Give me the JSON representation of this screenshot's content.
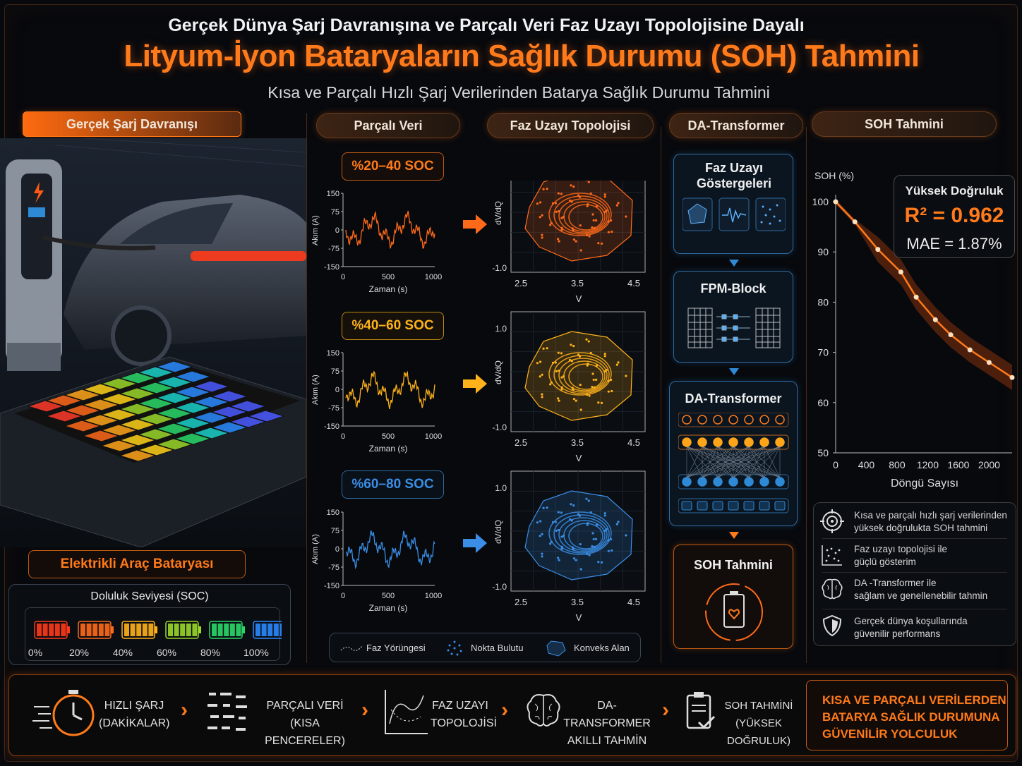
{
  "title": {
    "line1": "Gerçek Dünya Şarj Davranışına ve Parçalı Veri Faz Uzayı Topolojisine Dayalı",
    "line2": "Lityum-İyon Bataryaların Sağlık Durumu (SOH) Tahmini",
    "line3": "Kısa ve Parçalı Hızlı Şarj Verilerinden Batarya Sağlık Durumu Tahmini"
  },
  "headers": {
    "charge": "Gerçek Şarj Davranışı",
    "fragmented": "Parçalı Veri",
    "phase": "Faz Uzayı Topolojisi",
    "transformer": "DA-Transformer",
    "soh": "SOH Tahmini"
  },
  "left": {
    "ev_label": "Elektrikli Araç Bataryası",
    "soc_title": "Doluluk Seviyesi (SOC)",
    "soc_levels": [
      "0%",
      "20%",
      "40%",
      "60%",
      "80%",
      "100%"
    ],
    "colors": {
      "accent": "#ff7a1a",
      "yellow": "#ffb21a",
      "blue": "#2f8ad6"
    }
  },
  "segments": [
    {
      "label": "%20–40 SOC",
      "color": "#ff6a1a"
    },
    {
      "label": "%40–60 SOC",
      "color": "#ffb21a"
    },
    {
      "label": "%60–80 SOC",
      "color": "#3a8ee6"
    }
  ],
  "current_plot": {
    "ylabel": "Akım (A)",
    "xlabel": "Zaman (s)",
    "yticks": [
      "150",
      "75",
      "0",
      "-75",
      "-150"
    ],
    "xticks": [
      "0",
      "500",
      "1000"
    ]
  },
  "phase_plot": {
    "ylabel": "dV/dQ",
    "xlabel": "V",
    "yticks": [
      "1.0",
      "-1.0"
    ],
    "xticks": [
      "2.5",
      "3.5",
      "4.5"
    ]
  },
  "legend": {
    "trajectory": "Faz Yörüngesi",
    "cloud": "Nokta Bulutu",
    "hull": "Konveks Alan"
  },
  "pipeline": {
    "phase_indicators": "Faz Uzayı Göstergeleri",
    "fpm": "FPM-Block",
    "da": "DA-Transformer",
    "soh": "SOH Tahmini"
  },
  "soh_chart": {
    "ylabel": "SOH (%)",
    "xlabel": "Döngü Sayısı",
    "yticks": [
      "100",
      "90",
      "80",
      "70",
      "60",
      "50"
    ],
    "xticks": [
      "0",
      "400",
      "800",
      "1200",
      "1600",
      "2000"
    ],
    "ylim": [
      50,
      100
    ],
    "xlim": [
      0,
      2300
    ]
  },
  "chart_data": {
    "type": "line",
    "xlabel": "Döngü Sayısı",
    "ylabel": "SOH (%)",
    "x": [
      0,
      250,
      550,
      850,
      1050,
      1300,
      1500,
      1750,
      2000,
      2300
    ],
    "values": [
      100,
      96,
      90.5,
      86,
      81,
      76.5,
      73.5,
      70.5,
      68,
      65
    ],
    "ylim": [
      50,
      100
    ],
    "xlim": [
      0,
      2300
    ]
  },
  "metrics": {
    "title": "Yüksek Doğruluk",
    "r2": "R² = 0.962",
    "mae": "MAE = 1.87%"
  },
  "features": [
    {
      "icon": "target-icon",
      "line1": "Kısa ve parçalı hızlı şarj verilerinden",
      "line2": "yüksek doğrulukta SOH tahmini"
    },
    {
      "icon": "scatter-icon",
      "line1": "Faz uzayı topolojisi ile",
      "line2": "güçlü gösterim"
    },
    {
      "icon": "brain-icon",
      "line1": "DA -Transformer ile",
      "line2": "sağlam ve genellenebilir tahmin"
    },
    {
      "icon": "shield-icon",
      "line1": "Gerçek dünya koşullarında",
      "line2": "güvenilir performans"
    }
  ],
  "flow": [
    {
      "line1": "HIZLI ŞARJ",
      "line2": "(DAKİKALAR)"
    },
    {
      "line1": "PARÇALI VERİ",
      "line2": "(KISA PENCERELER)"
    },
    {
      "line1": "FAZ UZAYI",
      "line2": "TOPOLOJİSİ"
    },
    {
      "line1": "DA-TRANSFORMER",
      "line2": "AKILLI TAHMİN"
    },
    {
      "line1": "SOH TAHMİNİ",
      "line2": "(YÜKSEK DOĞRULUK)"
    }
  ],
  "conclusion": {
    "line1": "KISA VE PARÇALI VERİLERDEN",
    "line2": "BATARYA SAĞLIK DURUMUNA",
    "line3": "GÜVENİLİR YOLCULUK"
  }
}
